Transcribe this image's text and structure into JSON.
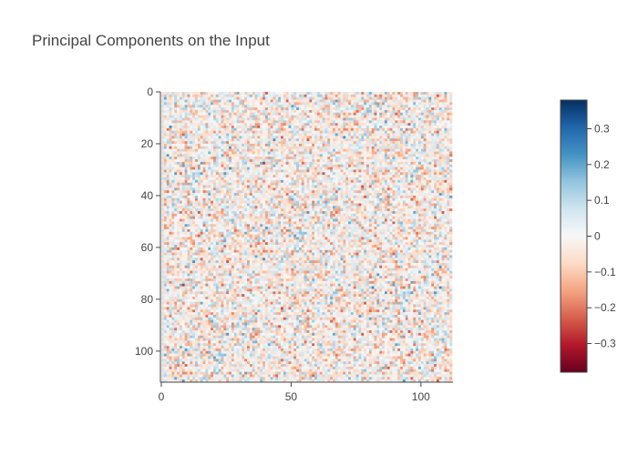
{
  "chart_data": {
    "type": "heatmap",
    "title": "Principal Components on the Input",
    "rows": 112,
    "cols": 112,
    "xlim": [
      0,
      112
    ],
    "ylim": [
      112,
      0
    ],
    "x_ticks": [
      0,
      50,
      100
    ],
    "y_ticks": [
      0,
      20,
      40,
      60,
      80,
      100
    ],
    "colorscale": "RdBu",
    "zmin": -0.38,
    "zmax": 0.38,
    "colorbar": {
      "ticks": [
        0.3,
        0.2,
        0.1,
        0,
        -0.1,
        -0.2,
        -0.3
      ],
      "tick_labels": [
        "0.3",
        "0.2",
        "0.1",
        "0",
        "−0.1",
        "−0.2",
        "−0.3"
      ]
    },
    "values_note": "",
    "grid": false,
    "legend": "colorbar-right"
  }
}
